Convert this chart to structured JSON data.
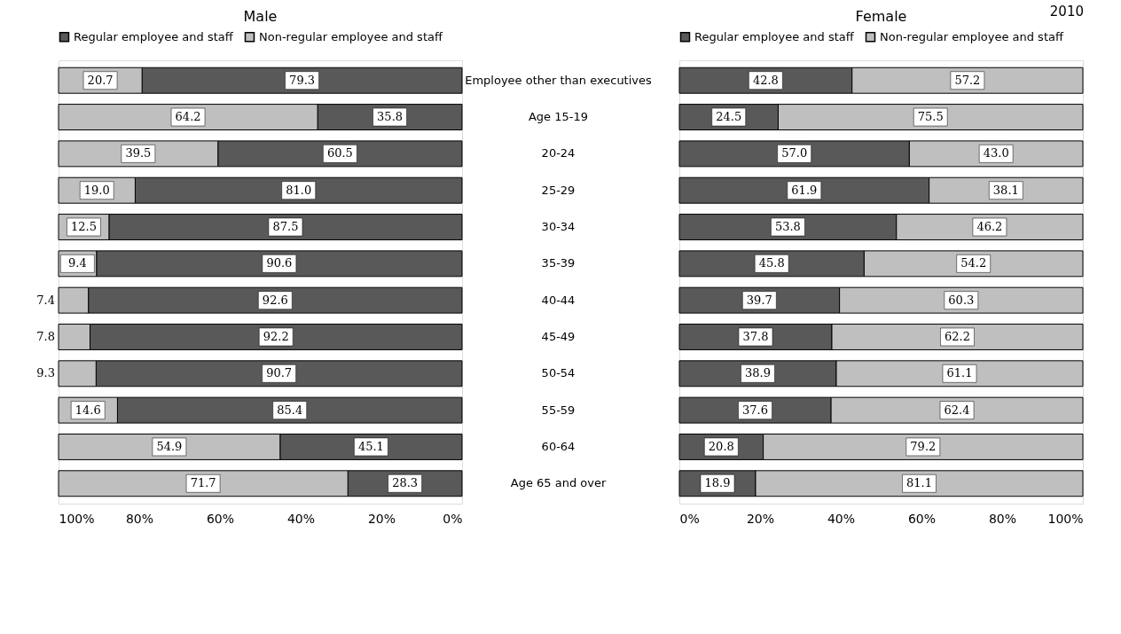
{
  "chart_data": [
    {
      "type": "bar",
      "orientation": "horizontal",
      "stacked": true,
      "title": "Male",
      "legend": "top",
      "categories": [
        "Employee other than executives",
        "Age 15-19",
        "20-24",
        "25-29",
        "30-34",
        "35-39",
        "40-44",
        "45-49",
        "50-54",
        "55-59",
        "60-64",
        "Age 65 and over"
      ],
      "xlim": [
        100,
        0
      ],
      "xticks": [
        {
          "value": 100,
          "label": "100%"
        },
        {
          "value": 80,
          "label": "80%"
        },
        {
          "value": 60,
          "label": "60%"
        },
        {
          "value": 40,
          "label": "40%"
        },
        {
          "value": 20,
          "label": "20%"
        },
        {
          "value": 0,
          "label": "0%"
        }
      ],
      "series": [
        {
          "name": "Regular employee and staff",
          "color": "#595959",
          "values": [
            79.3,
            35.8,
            60.5,
            81.0,
            87.5,
            90.6,
            92.6,
            92.2,
            90.7,
            85.4,
            45.1,
            28.3
          ],
          "value_labels": [
            "79.3",
            "35.8",
            "60.5",
            "81.0",
            "87.5",
            "90.6",
            "92.6",
            "92.2",
            "90.7",
            "85.4",
            "45.1",
            "28.3"
          ]
        },
        {
          "name": "Non-regular employee and staff",
          "color": "#bfbfbf",
          "values": [
            20.7,
            64.2,
            39.5,
            19.0,
            12.5,
            9.4,
            7.4,
            7.8,
            9.3,
            14.6,
            54.9,
            71.7
          ],
          "value_labels": [
            "20.7",
            "64.2",
            "39.5",
            "19.0",
            "12.5",
            "9.4",
            "7.4",
            "7.8",
            "9.3",
            "14.6",
            "54.9",
            "71.7"
          ]
        }
      ]
    },
    {
      "type": "bar",
      "orientation": "horizontal",
      "stacked": true,
      "title": "Female",
      "legend": "top",
      "tick_labels": "x",
      "annotations": [
        "2010"
      ],
      "xlim": [
        0,
        100
      ],
      "xticks": [
        {
          "value": 0,
          "label": "0%"
        },
        {
          "value": 20,
          "label": "20%"
        },
        {
          "value": 40,
          "label": "40%"
        },
        {
          "value": 60,
          "label": "60%"
        },
        {
          "value": 80,
          "label": "80%"
        },
        {
          "value": 100,
          "label": "100%"
        }
      ],
      "series": [
        {
          "name": "Regular employee and staff",
          "color": "#595959",
          "values": [
            42.8,
            24.5,
            57.0,
            61.9,
            53.8,
            45.8,
            39.7,
            37.8,
            38.9,
            37.6,
            20.8,
            18.9
          ],
          "value_labels": [
            "42.8",
            "24.5",
            "57.0",
            "61.9",
            "53.8",
            "45.8",
            "39.7",
            "37.8",
            "38.9",
            "37.6",
            "20.8",
            "18.9"
          ]
        },
        {
          "name": "Non-regular employee and staff",
          "color": "#bfbfbf",
          "values": [
            57.2,
            75.5,
            43.0,
            38.1,
            46.2,
            54.2,
            60.3,
            62.2,
            61.1,
            62.4,
            79.2,
            81.1
          ],
          "value_labels": [
            "57.2",
            "75.5",
            "43.0",
            "38.1",
            "46.2",
            "54.2",
            "60.3",
            "62.2",
            "61.1",
            "62.4",
            "79.2",
            "81.1"
          ]
        }
      ]
    }
  ]
}
